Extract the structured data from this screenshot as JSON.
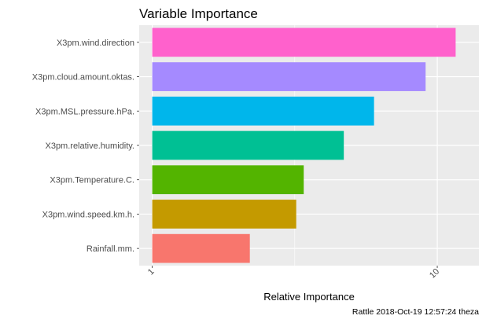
{
  "chart_data": {
    "type": "bar",
    "orientation": "horizontal",
    "title": "Variable Importance",
    "xlabel": "Relative Importance",
    "ylabel": "",
    "x_scale": "log10",
    "xlim": [
      0.9,
      14
    ],
    "x_ticks": [
      1,
      10
    ],
    "x_tick_labels": [
      "1",
      "10"
    ],
    "bar_base": 1,
    "grid": true,
    "legend": "none",
    "caption": "Rattle 2018-Oct-19 12:57:24 theza",
    "categories": [
      "X3pm.wind.direction",
      "X3pm.cloud.amount.oktas.",
      "X3pm.MSL.pressure.hPa.",
      "X3pm.relative.humidity.",
      "X3pm.Temperature.C.",
      "X3pm.wind.speed.km.h.",
      "Rainfall.mm."
    ],
    "values": [
      11.6,
      9.1,
      6.0,
      4.7,
      3.4,
      3.2,
      2.2
    ],
    "colors": [
      "#FF61CC",
      "#A58AFF",
      "#00B6EB",
      "#00C094",
      "#53B400",
      "#C49A00",
      "#F8766D"
    ]
  }
}
